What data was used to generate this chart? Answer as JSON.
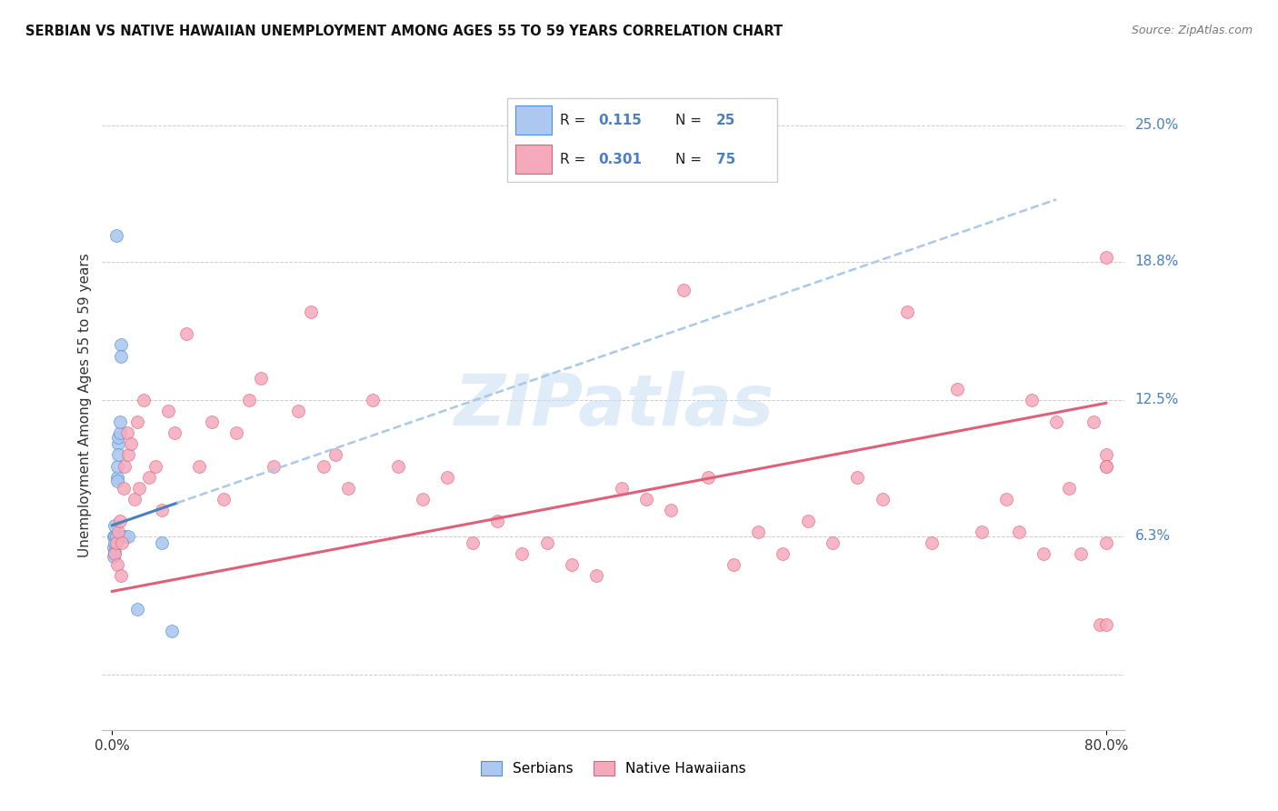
{
  "title": "SERBIAN VS NATIVE HAWAIIAN UNEMPLOYMENT AMONG AGES 55 TO 59 YEARS CORRELATION CHART",
  "source": "Source: ZipAtlas.com",
  "ylabel": "Unemployment Among Ages 55 to 59 years",
  "ytick_labels": [
    "6.3%",
    "12.5%",
    "18.8%",
    "25.0%"
  ],
  "ytick_values": [
    0.063,
    0.125,
    0.188,
    0.25
  ],
  "legend_label_serbian": "Serbians",
  "legend_label_hawaiian": "Native Hawaiians",
  "serbian_fill_color": "#adc8f0",
  "hawaiian_fill_color": "#f5aabb",
  "serbian_edge_color": "#5090d0",
  "hawaiian_edge_color": "#e0607a",
  "serbian_line_color": "#4a7fc0",
  "hawaiian_line_color": "#e0607a",
  "dashed_line_color": "#aac8e8",
  "r_value_color": "#4a7fc0",
  "watermark_color": "#cde0f5",
  "serbian_x": [
    0.001,
    0.001,
    0.001,
    0.002,
    0.002,
    0.002,
    0.002,
    0.003,
    0.003,
    0.004,
    0.004,
    0.004,
    0.005,
    0.005,
    0.005,
    0.006,
    0.006,
    0.007,
    0.007,
    0.008,
    0.01,
    0.013,
    0.02,
    0.04,
    0.048
  ],
  "serbian_y": [
    0.063,
    0.058,
    0.054,
    0.063,
    0.068,
    0.056,
    0.06,
    0.2,
    0.063,
    0.09,
    0.095,
    0.088,
    0.105,
    0.108,
    0.1,
    0.11,
    0.115,
    0.15,
    0.145,
    0.063,
    0.063,
    0.063,
    0.03,
    0.06,
    0.02
  ],
  "hawaiian_x": [
    0.002,
    0.003,
    0.004,
    0.005,
    0.006,
    0.007,
    0.008,
    0.009,
    0.01,
    0.012,
    0.013,
    0.015,
    0.018,
    0.02,
    0.022,
    0.025,
    0.03,
    0.035,
    0.04,
    0.045,
    0.05,
    0.06,
    0.07,
    0.08,
    0.09,
    0.1,
    0.11,
    0.12,
    0.13,
    0.15,
    0.16,
    0.17,
    0.18,
    0.19,
    0.21,
    0.23,
    0.25,
    0.27,
    0.29,
    0.31,
    0.33,
    0.35,
    0.37,
    0.39,
    0.41,
    0.43,
    0.45,
    0.46,
    0.48,
    0.5,
    0.52,
    0.54,
    0.56,
    0.58,
    0.6,
    0.62,
    0.64,
    0.66,
    0.68,
    0.7,
    0.72,
    0.73,
    0.74,
    0.75,
    0.76,
    0.77,
    0.78,
    0.79,
    0.795,
    0.8,
    0.8,
    0.8,
    0.8,
    0.8,
    0.8
  ],
  "hawaiian_y": [
    0.055,
    0.06,
    0.05,
    0.065,
    0.07,
    0.045,
    0.06,
    0.085,
    0.095,
    0.11,
    0.1,
    0.105,
    0.08,
    0.115,
    0.085,
    0.125,
    0.09,
    0.095,
    0.075,
    0.12,
    0.11,
    0.155,
    0.095,
    0.115,
    0.08,
    0.11,
    0.125,
    0.135,
    0.095,
    0.12,
    0.165,
    0.095,
    0.1,
    0.085,
    0.125,
    0.095,
    0.08,
    0.09,
    0.06,
    0.07,
    0.055,
    0.06,
    0.05,
    0.045,
    0.085,
    0.08,
    0.075,
    0.175,
    0.09,
    0.05,
    0.065,
    0.055,
    0.07,
    0.06,
    0.09,
    0.08,
    0.165,
    0.06,
    0.13,
    0.065,
    0.08,
    0.065,
    0.125,
    0.055,
    0.115,
    0.085,
    0.055,
    0.115,
    0.023,
    0.1,
    0.095,
    0.19,
    0.06,
    0.023,
    0.095
  ]
}
